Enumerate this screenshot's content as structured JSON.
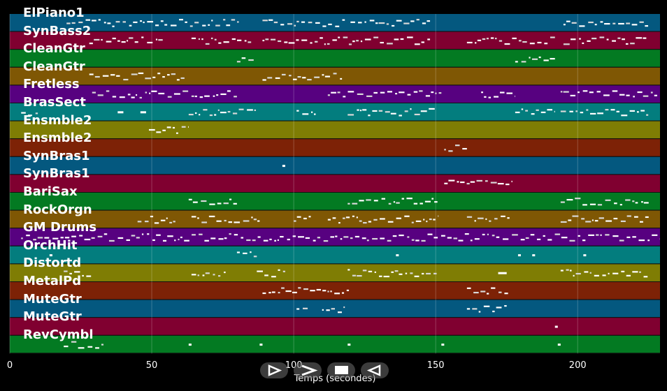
{
  "tracks": [
    {
      "name": "ElPiano1",
      "color": "#04587f"
    },
    {
      "name": "SynBass2",
      "color": "#800030"
    },
    {
      "name": "CleanGtr",
      "color": "#037a22"
    },
    {
      "name": "CleanGtr",
      "color": "#7f5704"
    },
    {
      "name": "Fretless",
      "color": "#570180"
    },
    {
      "name": "BrasSect",
      "color": "#037d7e"
    },
    {
      "name": "Ensmble2",
      "color": "#7f7d04"
    },
    {
      "name": "Ensmble2",
      "color": "#7d2206"
    },
    {
      "name": "SynBras1",
      "color": "#04587f"
    },
    {
      "name": "SynBras1",
      "color": "#800030"
    },
    {
      "name": "BariSax",
      "color": "#037a22"
    },
    {
      "name": "RockOrgn",
      "color": "#7f5704"
    },
    {
      "name": "GM Drums",
      "color": "#570180"
    },
    {
      "name": "OrchHit",
      "color": "#037d7e"
    },
    {
      "name": "Distortd",
      "color": "#7f7d04"
    },
    {
      "name": "MetalPd",
      "color": "#7d2206"
    },
    {
      "name": "MuteGtr",
      "color": "#04587f"
    },
    {
      "name": "MuteGtr",
      "color": "#800030"
    },
    {
      "name": "RevCymbl",
      "color": "#037a22"
    }
  ],
  "axis": {
    "xlabel": "Temps (secondes)",
    "xlim": [
      0,
      229
    ],
    "ticks": [
      {
        "value": 0,
        "label": "0"
      },
      {
        "value": 50,
        "label": "50"
      },
      {
        "value": 100,
        "label": "100"
      },
      {
        "value": 150,
        "label": "150"
      },
      {
        "value": 200,
        "label": "200"
      }
    ]
  },
  "notes": [
    [
      [
        20,
        81
      ],
      [
        89,
        118
      ],
      [
        120,
        148
      ],
      [
        195,
        225
      ]
    ],
    [
      [
        28,
        54
      ],
      [
        64,
        85
      ],
      [
        89,
        148
      ],
      [
        161,
        192
      ],
      [
        195,
        225
      ]
    ],
    [
      [
        80,
        86
      ],
      [
        178,
        192
      ]
    ],
    [
      [
        28,
        62
      ],
      [
        89,
        117
      ]
    ],
    [
      [
        29,
        80
      ],
      [
        112,
        152
      ],
      [
        166,
        178
      ],
      [
        194,
        228
      ]
    ],
    [
      [
        4,
        10
      ],
      [
        38,
        40
      ],
      [
        46,
        48
      ],
      [
        63,
        87
      ],
      [
        101,
        108
      ],
      [
        119,
        150
      ],
      [
        178,
        192
      ],
      [
        194,
        225
      ]
    ],
    [
      [
        49,
        63
      ]
    ],
    [
      [
        153,
        161
      ]
    ],
    [
      [
        96,
        97
      ]
    ],
    [
      [
        153,
        177
      ]
    ],
    [
      [
        63,
        80
      ],
      [
        119,
        151
      ],
      [
        194,
        225
      ]
    ],
    [
      [
        45,
        59
      ],
      [
        64,
        88
      ],
      [
        100,
        106
      ],
      [
        112,
        151
      ],
      [
        161,
        176
      ],
      [
        194,
        225
      ]
    ],
    [
      [
        4,
        229
      ]
    ],
    [
      [
        14,
        15
      ],
      [
        80,
        87
      ],
      [
        136,
        137
      ],
      [
        179,
        180
      ],
      [
        184,
        185
      ],
      [
        202,
        203
      ]
    ],
    [
      [
        19,
        29
      ],
      [
        64,
        76
      ],
      [
        87,
        97
      ],
      [
        119,
        151
      ],
      [
        172,
        175
      ],
      [
        194,
        225
      ]
    ],
    [
      [
        89,
        120
      ],
      [
        161,
        176
      ]
    ],
    [
      [
        101,
        105
      ],
      [
        110,
        118
      ],
      [
        161,
        175
      ]
    ],
    [
      [
        192,
        193
      ]
    ],
    [
      [
        19,
        33
      ],
      [
        63,
        64
      ],
      [
        88,
        89
      ],
      [
        119,
        120
      ],
      [
        152,
        153
      ],
      [
        193,
        194
      ]
    ]
  ],
  "controls": {
    "play_icon": "play-icon",
    "fast_forward_icon": "fast-forward-icon",
    "stop_icon": "stop-icon",
    "rewind_icon": "rewind-icon"
  }
}
